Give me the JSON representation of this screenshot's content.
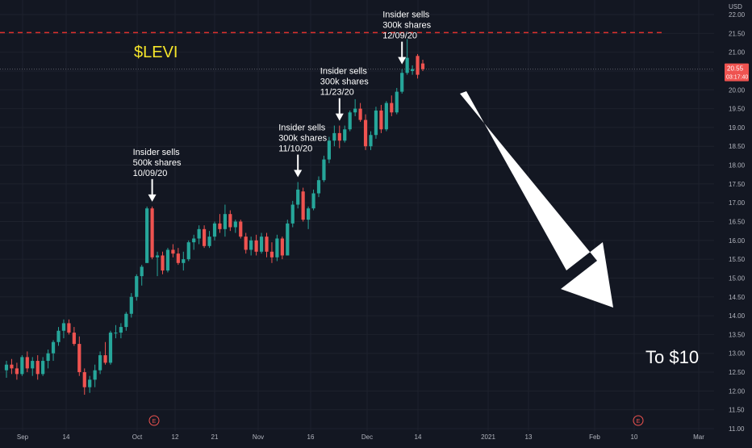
{
  "chart_data": {
    "type": "candlestick",
    "ticker_label": "$LEVI",
    "currency_label": "USD",
    "ylim": [
      11.0,
      22.0
    ],
    "y_ticks": [
      "22.00",
      "21.50",
      "21.00",
      "20.50",
      "20.00",
      "19.50",
      "19.00",
      "18.50",
      "18.00",
      "17.50",
      "17.00",
      "16.50",
      "16.00",
      "15.50",
      "15.00",
      "14.50",
      "14.00",
      "13.50",
      "13.00",
      "12.50",
      "12.00",
      "11.50",
      "11.00"
    ],
    "x_ticks": [
      "Sep",
      "14",
      "Oct",
      "12",
      "21",
      "Nov",
      "16",
      "Dec",
      "14",
      "2021",
      "13",
      "Feb",
      "10",
      "Mar"
    ],
    "last_price": "20.55",
    "countdown": "03:17:40",
    "resistance_level": 21.52,
    "up_color": "#26a69a",
    "down_color": "#ef5350",
    "candles": [
      {
        "o": 12.55,
        "h": 12.8,
        "l": 12.35,
        "c": 12.7
      },
      {
        "o": 12.7,
        "h": 12.85,
        "l": 12.45,
        "c": 12.6
      },
      {
        "o": 12.6,
        "h": 12.75,
        "l": 12.3,
        "c": 12.45
      },
      {
        "o": 12.45,
        "h": 12.95,
        "l": 12.4,
        "c": 12.9
      },
      {
        "o": 12.9,
        "h": 13.05,
        "l": 12.5,
        "c": 12.6
      },
      {
        "o": 12.6,
        "h": 12.9,
        "l": 12.4,
        "c": 12.8
      },
      {
        "o": 12.8,
        "h": 12.95,
        "l": 12.3,
        "c": 12.45
      },
      {
        "o": 12.45,
        "h": 12.9,
        "l": 12.4,
        "c": 12.8
      },
      {
        "o": 12.8,
        "h": 13.1,
        "l": 12.6,
        "c": 13.0
      },
      {
        "o": 13.0,
        "h": 13.35,
        "l": 12.8,
        "c": 13.3
      },
      {
        "o": 13.3,
        "h": 13.7,
        "l": 13.2,
        "c": 13.6
      },
      {
        "o": 13.6,
        "h": 13.9,
        "l": 13.4,
        "c": 13.8
      },
      {
        "o": 13.8,
        "h": 13.9,
        "l": 13.5,
        "c": 13.55
      },
      {
        "o": 13.55,
        "h": 13.7,
        "l": 13.2,
        "c": 13.25
      },
      {
        "o": 13.25,
        "h": 13.45,
        "l": 12.4,
        "c": 12.5
      },
      {
        "o": 12.5,
        "h": 12.6,
        "l": 11.9,
        "c": 12.1
      },
      {
        "o": 12.1,
        "h": 12.4,
        "l": 11.95,
        "c": 12.3
      },
      {
        "o": 12.3,
        "h": 12.7,
        "l": 12.1,
        "c": 12.55
      },
      {
        "o": 12.55,
        "h": 13.05,
        "l": 12.45,
        "c": 12.95
      },
      {
        "o": 12.95,
        "h": 13.3,
        "l": 12.7,
        "c": 12.75
      },
      {
        "o": 12.75,
        "h": 13.6,
        "l": 12.7,
        "c": 13.55
      },
      {
        "o": 13.55,
        "h": 13.75,
        "l": 13.4,
        "c": 13.55
      },
      {
        "o": 13.55,
        "h": 13.8,
        "l": 13.4,
        "c": 13.7
      },
      {
        "o": 13.7,
        "h": 14.1,
        "l": 13.6,
        "c": 14.05
      },
      {
        "o": 14.05,
        "h": 14.6,
        "l": 13.95,
        "c": 14.5
      },
      {
        "o": 14.5,
        "h": 15.1,
        "l": 14.4,
        "c": 15.05
      },
      {
        "o": 15.05,
        "h": 15.35,
        "l": 14.8,
        "c": 15.3
      },
      {
        "o": 15.4,
        "h": 16.9,
        "l": 15.4,
        "c": 16.85
      },
      {
        "o": 16.85,
        "h": 16.9,
        "l": 15.5,
        "c": 15.55
      },
      {
        "o": 15.55,
        "h": 15.7,
        "l": 15.05,
        "c": 15.6
      },
      {
        "o": 15.6,
        "h": 15.7,
        "l": 15.1,
        "c": 15.2
      },
      {
        "o": 15.2,
        "h": 15.8,
        "l": 15.15,
        "c": 15.75
      },
      {
        "o": 15.75,
        "h": 15.9,
        "l": 15.55,
        "c": 15.65
      },
      {
        "o": 15.65,
        "h": 15.8,
        "l": 15.35,
        "c": 15.4
      },
      {
        "o": 15.4,
        "h": 15.7,
        "l": 15.2,
        "c": 15.5
      },
      {
        "o": 15.5,
        "h": 16.0,
        "l": 15.45,
        "c": 15.95
      },
      {
        "o": 15.95,
        "h": 16.15,
        "l": 15.75,
        "c": 16.05
      },
      {
        "o": 16.05,
        "h": 16.4,
        "l": 15.9,
        "c": 16.3
      },
      {
        "o": 16.3,
        "h": 16.4,
        "l": 15.8,
        "c": 15.85
      },
      {
        "o": 15.85,
        "h": 16.25,
        "l": 15.8,
        "c": 16.1
      },
      {
        "o": 16.1,
        "h": 16.5,
        "l": 16.0,
        "c": 16.45
      },
      {
        "o": 16.45,
        "h": 16.7,
        "l": 16.2,
        "c": 16.3
      },
      {
        "o": 16.3,
        "h": 16.95,
        "l": 16.1,
        "c": 16.7
      },
      {
        "o": 16.7,
        "h": 16.8,
        "l": 16.25,
        "c": 16.35
      },
      {
        "o": 16.35,
        "h": 16.55,
        "l": 16.2,
        "c": 16.5
      },
      {
        "o": 16.5,
        "h": 16.55,
        "l": 16.05,
        "c": 16.1
      },
      {
        "o": 16.1,
        "h": 16.2,
        "l": 15.65,
        "c": 15.75
      },
      {
        "o": 15.75,
        "h": 16.1,
        "l": 15.6,
        "c": 16.0
      },
      {
        "o": 16.0,
        "h": 16.15,
        "l": 15.6,
        "c": 15.7
      },
      {
        "o": 15.7,
        "h": 16.2,
        "l": 15.65,
        "c": 16.1
      },
      {
        "o": 16.1,
        "h": 16.2,
        "l": 15.55,
        "c": 15.7
      },
      {
        "o": 15.7,
        "h": 15.95,
        "l": 15.4,
        "c": 15.55
      },
      {
        "o": 15.55,
        "h": 16.15,
        "l": 15.45,
        "c": 16.05
      },
      {
        "o": 16.05,
        "h": 16.1,
        "l": 15.5,
        "c": 15.6
      },
      {
        "o": 15.6,
        "h": 16.55,
        "l": 15.6,
        "c": 16.45
      },
      {
        "o": 16.45,
        "h": 17.05,
        "l": 16.35,
        "c": 16.95
      },
      {
        "o": 16.95,
        "h": 17.55,
        "l": 16.85,
        "c": 17.35
      },
      {
        "o": 17.3,
        "h": 17.4,
        "l": 16.5,
        "c": 16.55
      },
      {
        "o": 16.55,
        "h": 16.9,
        "l": 16.3,
        "c": 16.85
      },
      {
        "o": 16.85,
        "h": 17.35,
        "l": 16.8,
        "c": 17.25
      },
      {
        "o": 17.25,
        "h": 17.7,
        "l": 17.15,
        "c": 17.6
      },
      {
        "o": 17.6,
        "h": 18.25,
        "l": 17.55,
        "c": 18.15
      },
      {
        "o": 18.15,
        "h": 18.75,
        "l": 18.05,
        "c": 18.65
      },
      {
        "o": 18.65,
        "h": 19.05,
        "l": 18.5,
        "c": 18.85
      },
      {
        "o": 18.85,
        "h": 19.05,
        "l": 18.45,
        "c": 18.65
      },
      {
        "o": 18.65,
        "h": 19.05,
        "l": 18.6,
        "c": 18.95
      },
      {
        "o": 18.95,
        "h": 19.45,
        "l": 18.9,
        "c": 19.4
      },
      {
        "o": 19.4,
        "h": 19.75,
        "l": 19.3,
        "c": 19.5
      },
      {
        "o": 19.5,
        "h": 19.65,
        "l": 19.15,
        "c": 19.2
      },
      {
        "o": 19.2,
        "h": 19.35,
        "l": 18.4,
        "c": 18.5
      },
      {
        "o": 18.5,
        "h": 18.9,
        "l": 18.4,
        "c": 18.8
      },
      {
        "o": 18.8,
        "h": 19.55,
        "l": 18.7,
        "c": 19.45
      },
      {
        "o": 19.45,
        "h": 19.6,
        "l": 18.85,
        "c": 18.95
      },
      {
        "o": 18.95,
        "h": 19.7,
        "l": 18.9,
        "c": 19.65
      },
      {
        "o": 19.65,
        "h": 19.85,
        "l": 19.3,
        "c": 19.4
      },
      {
        "o": 19.4,
        "h": 20.05,
        "l": 19.35,
        "c": 19.95
      },
      {
        "o": 19.95,
        "h": 20.55,
        "l": 19.9,
        "c": 20.45
      },
      {
        "o": 20.45,
        "h": 21.35,
        "l": 20.4,
        "c": 20.85
      },
      {
        "o": 20.5,
        "h": 20.65,
        "l": 20.4,
        "c": 20.55
      },
      {
        "o": 20.9,
        "h": 20.95,
        "l": 20.3,
        "c": 20.4
      },
      {
        "o": 20.7,
        "h": 20.8,
        "l": 20.5,
        "c": 20.55
      }
    ],
    "annotations": [
      {
        "lines": [
          "Insider sells",
          "500k shares",
          "10/09/20"
        ],
        "candle": 28
      },
      {
        "lines": [
          "Insider sells",
          "300k shares",
          "11/10/20"
        ],
        "candle": 56
      },
      {
        "lines": [
          "Insider sells",
          "300k shares",
          "11/23/20"
        ],
        "candle": 64
      },
      {
        "lines": [
          "Insider sells",
          "300k shares",
          "12/09/20"
        ],
        "candle": 76
      }
    ],
    "earnings_marker": "E",
    "target_text": "To $10"
  }
}
